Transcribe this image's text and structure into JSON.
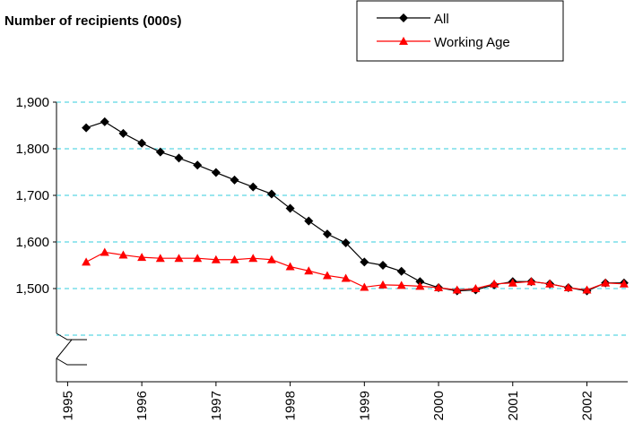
{
  "chart_data": {
    "type": "line",
    "title": "Number of recipients (000s)",
    "x": [
      1995.25,
      1995.5,
      1995.75,
      1996,
      1996.25,
      1996.5,
      1996.75,
      1997,
      1997.25,
      1997.5,
      1997.75,
      1998,
      1998.25,
      1998.5,
      1998.75,
      1999,
      1999.25,
      1999.5,
      1999.75,
      2000,
      2000.25,
      2000.5,
      2000.75,
      2001,
      2001.25,
      2001.5,
      2001.75,
      2002,
      2002.25,
      2002.5
    ],
    "series": [
      {
        "name": "All",
        "color": "#000000",
        "marker": "diamond",
        "values": [
          1845,
          1858,
          1833,
          1812,
          1793,
          1780,
          1765,
          1749,
          1733,
          1718,
          1703,
          1672,
          1645,
          1617,
          1598,
          1557,
          1550,
          1537,
          1515,
          1502,
          1495,
          1497,
          1508,
          1515,
          1515,
          1510,
          1502,
          1495,
          1512,
          1512
        ]
      },
      {
        "name": "Working Age",
        "color": "#ff0000",
        "marker": "triangle",
        "values": [
          1557,
          1578,
          1572,
          1567,
          1565,
          1565,
          1565,
          1562,
          1562,
          1565,
          1562,
          1547,
          1538,
          1528,
          1522,
          1503,
          1508,
          1507,
          1505,
          1502,
          1497,
          1500,
          1510,
          1512,
          1515,
          1510,
          1502,
          1497,
          1512,
          1510
        ]
      }
    ],
    "xlim": [
      1994.85,
      2002.55
    ],
    "xticks": [
      1995,
      1996,
      1997,
      1998,
      1999,
      2000,
      2001,
      2002
    ],
    "ylim": [
      1300,
      1900
    ],
    "yticks": [
      {
        "value": 1500,
        "label": "1,500"
      },
      {
        "value": 1600,
        "label": "1,600"
      },
      {
        "value": 1700,
        "label": "1,700"
      },
      {
        "value": 1800,
        "label": "1,800"
      },
      {
        "value": 1900,
        "label": "1,900"
      }
    ],
    "grid": true,
    "legend": "top-right"
  }
}
